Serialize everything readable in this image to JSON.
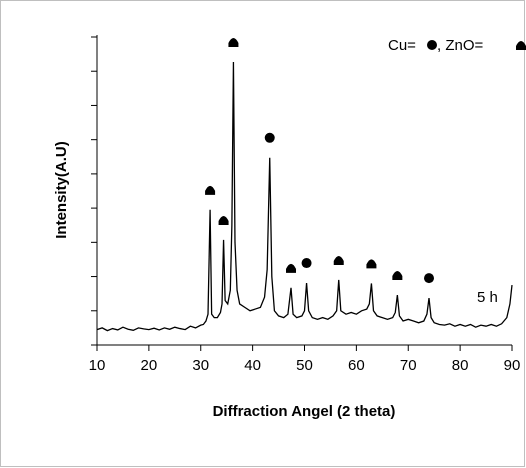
{
  "chart_data": {
    "type": "line",
    "x_label": "Diffraction Angel (2 theta)",
    "y_label": "Intensity(A.U)",
    "annotation": "5 h",
    "legend_cu": "Cu= ",
    "legend_zno": ", ZnO= ",
    "color": "#000000",
    "xlim": [
      10,
      90
    ],
    "xticks": [
      10,
      20,
      30,
      40,
      50,
      60,
      70,
      80,
      90
    ],
    "ylim": [
      0,
      9
    ],
    "yticks": [
      0,
      1,
      2,
      3,
      4,
      5,
      6,
      7,
      8,
      9
    ],
    "cu_peaks": [
      43.3,
      50.4,
      74
    ],
    "zno_peaks": [
      31.8,
      34.4,
      36.3,
      47.4,
      56.6,
      62.9,
      67.9
    ],
    "x": [
      10,
      11,
      12,
      13,
      14,
      15,
      16,
      17,
      18,
      19,
      20,
      21,
      22,
      23,
      24,
      25,
      26,
      27,
      28,
      29,
      30,
      30.5,
      31,
      31.4,
      31.8,
      32.1,
      32.6,
      33.2,
      33.8,
      34.1,
      34.4,
      34.7,
      35.2,
      35.7,
      36.0,
      36.3,
      36.6,
      37.0,
      37.5,
      38.5,
      39.5,
      40.5,
      41.5,
      42.3,
      42.8,
      43.3,
      43.7,
      44.2,
      45,
      46,
      46.8,
      47.4,
      47.8,
      48.5,
      49.5,
      50.0,
      50.4,
      50.8,
      51.5,
      52.5,
      53.5,
      54.5,
      55.5,
      56.2,
      56.6,
      57.0,
      58,
      59,
      60,
      61,
      62,
      62.5,
      62.9,
      63.3,
      64,
      65,
      66,
      67,
      67.5,
      67.9,
      68.3,
      69,
      70,
      71,
      72,
      73,
      73.6,
      74,
      74.4,
      75,
      76,
      77,
      78,
      79,
      80,
      81,
      82,
      83,
      84,
      85,
      86,
      87,
      88,
      89,
      89.6,
      90
    ],
    "values": [
      0.45,
      0.5,
      0.42,
      0.48,
      0.44,
      0.52,
      0.46,
      0.43,
      0.5,
      0.47,
      0.45,
      0.49,
      0.44,
      0.5,
      0.46,
      0.52,
      0.48,
      0.45,
      0.55,
      0.5,
      0.58,
      0.6,
      0.7,
      0.9,
      3.95,
      0.9,
      0.8,
      0.8,
      0.95,
      1.2,
      3.07,
      1.3,
      1.2,
      1.6,
      3.5,
      8.27,
      3.0,
      1.6,
      1.2,
      1.1,
      1.0,
      1.05,
      1.1,
      1.4,
      2.2,
      5.47,
      2.0,
      1.0,
      0.85,
      0.8,
      0.9,
      1.67,
      0.9,
      0.8,
      0.85,
      1.0,
      1.81,
      1.0,
      0.8,
      0.75,
      0.8,
      0.75,
      0.85,
      1.0,
      1.9,
      1.0,
      0.9,
      0.95,
      0.9,
      1.0,
      1.05,
      1.2,
      1.8,
      1.0,
      0.85,
      0.8,
      0.75,
      0.8,
      0.95,
      1.46,
      0.85,
      0.7,
      0.75,
      0.7,
      0.65,
      0.7,
      0.9,
      1.37,
      0.8,
      0.65,
      0.6,
      0.58,
      0.62,
      0.55,
      0.6,
      0.55,
      0.6,
      0.52,
      0.58,
      0.55,
      0.6,
      0.55,
      0.62,
      0.8,
      1.2,
      1.75
    ]
  }
}
